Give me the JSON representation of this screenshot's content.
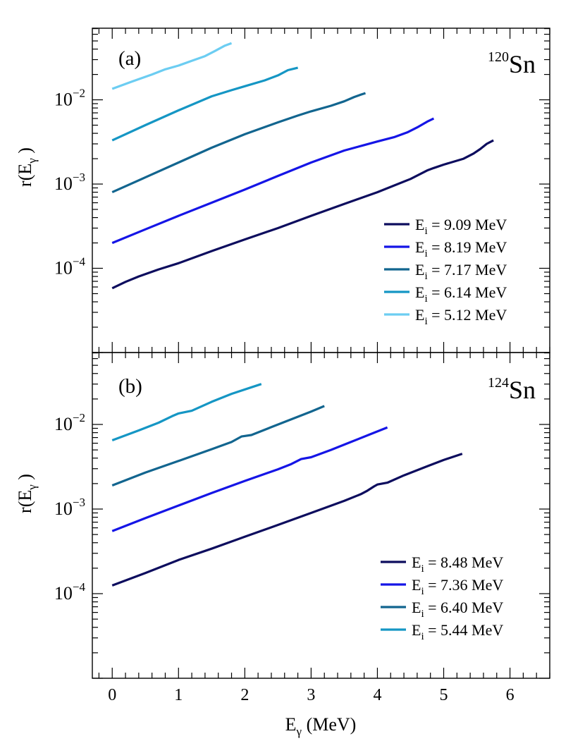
{
  "figure": {
    "xlabel_main": "E",
    "xlabel_sub": "γ",
    "xlabel_unit": " (MeV)",
    "x_ticks": [
      "0",
      "1",
      "2",
      "3",
      "4",
      "5",
      "6"
    ]
  },
  "chart_data": [
    {
      "type": "line",
      "panel_label": "(a)",
      "isotope_mass": "120",
      "isotope_symbol": "Sn",
      "ylabel_main": "r(E",
      "ylabel_sub": "γ",
      "ylabel_close": " )",
      "xlim": [
        -0.3,
        6.6
      ],
      "ylim_log10": [
        -5.0,
        -1.15
      ],
      "yscale": "log",
      "y_tick_exponents": [
        -4,
        -3,
        -2
      ],
      "legend_position": "bottom-right",
      "series": [
        {
          "legend_main": "E",
          "legend_sub": "i",
          "legend_rest": " = 9.09 MeV",
          "color": "#0d0d5e",
          "x": [
            0.0,
            0.2,
            0.4,
            0.7,
            1.0,
            1.5,
            2.0,
            2.5,
            3.0,
            3.5,
            4.0,
            4.5,
            4.75,
            4.85,
            5.0,
            5.3,
            5.45,
            5.55,
            5.65,
            5.75
          ],
          "y": [
            5.8e-05,
            6.9e-05,
            8e-05,
            9.7e-05,
            0.000115,
            0.00016,
            0.00022,
            0.0003,
            0.00042,
            0.00058,
            0.0008,
            0.00115,
            0.00145,
            0.00155,
            0.0017,
            0.002,
            0.0023,
            0.0026,
            0.003,
            0.0033
          ]
        },
        {
          "legend_main": "E",
          "legend_sub": "i",
          "legend_rest": " = 8.19 MeV",
          "color": "#1515e6",
          "x": [
            0.0,
            0.5,
            1.0,
            1.5,
            2.0,
            2.5,
            3.0,
            3.5,
            3.8,
            4.0,
            4.25,
            4.45,
            4.6,
            4.75,
            4.85
          ],
          "y": [
            0.0002,
            0.00029,
            0.00042,
            0.0006,
            0.00086,
            0.00125,
            0.0018,
            0.0025,
            0.0029,
            0.0032,
            0.0036,
            0.0041,
            0.0047,
            0.0055,
            0.006
          ]
        },
        {
          "legend_main": "E",
          "legend_sub": "i",
          "legend_rest": " = 7.17 MeV",
          "color": "#12658f",
          "x": [
            0.0,
            0.5,
            1.0,
            1.5,
            2.0,
            2.5,
            2.8,
            3.0,
            3.3,
            3.5,
            3.65,
            3.75,
            3.82
          ],
          "y": [
            0.0008,
            0.0012,
            0.0018,
            0.0027,
            0.0039,
            0.0054,
            0.0065,
            0.0073,
            0.0085,
            0.0096,
            0.0108,
            0.0115,
            0.012
          ]
        },
        {
          "legend_main": "E",
          "legend_sub": "i",
          "legend_rest": " = 6.14 MeV",
          "color": "#1596c4",
          "x": [
            0.0,
            0.5,
            1.0,
            1.5,
            1.8,
            2.0,
            2.3,
            2.5,
            2.65,
            2.8
          ],
          "y": [
            0.0033,
            0.005,
            0.0075,
            0.011,
            0.013,
            0.0145,
            0.017,
            0.0195,
            0.0225,
            0.024
          ]
        },
        {
          "legend_main": "E",
          "legend_sub": "i",
          "legend_rest": " = 5.12 MeV",
          "color": "#6ccdf2",
          "x": [
            0.0,
            0.3,
            0.6,
            0.8,
            1.0,
            1.2,
            1.4,
            1.55,
            1.7,
            1.8
          ],
          "y": [
            0.0135,
            0.0165,
            0.02,
            0.023,
            0.0255,
            0.029,
            0.033,
            0.038,
            0.044,
            0.047
          ]
        }
      ]
    },
    {
      "type": "line",
      "panel_label": "(b)",
      "isotope_mass": "124",
      "isotope_symbol": "Sn",
      "ylabel_main": "r(E",
      "ylabel_sub": "γ",
      "ylabel_close": " )",
      "xlim": [
        -0.3,
        6.6
      ],
      "ylim_log10": [
        -5.0,
        -1.15
      ],
      "yscale": "log",
      "y_tick_exponents": [
        -4,
        -3,
        -2
      ],
      "legend_position": "bottom-right",
      "series": [
        {
          "legend_main": "E",
          "legend_sub": "i",
          "legend_rest": " = 8.48 MeV",
          "color": "#0d0d5e",
          "x": [
            0.0,
            0.5,
            1.0,
            1.5,
            2.0,
            2.5,
            3.0,
            3.5,
            3.75,
            3.85,
            3.95,
            4.0,
            4.15,
            4.4,
            4.75,
            5.0,
            5.28
          ],
          "y": [
            0.000125,
            0.000175,
            0.00025,
            0.00034,
            0.00047,
            0.00065,
            0.0009,
            0.00125,
            0.0015,
            0.00165,
            0.00185,
            0.00195,
            0.00205,
            0.0025,
            0.0032,
            0.0038,
            0.0045
          ]
        },
        {
          "legend_main": "E",
          "legend_sub": "i",
          "legend_rest": " = 7.36 MeV",
          "color": "#1515e6",
          "x": [
            0.0,
            0.5,
            1.0,
            1.5,
            2.0,
            2.5,
            2.7,
            2.85,
            3.0,
            3.3,
            3.6,
            3.9,
            4.15
          ],
          "y": [
            0.00055,
            0.00078,
            0.0011,
            0.00155,
            0.00215,
            0.00295,
            0.0034,
            0.0039,
            0.0041,
            0.005,
            0.0062,
            0.0077,
            0.0092
          ]
        },
        {
          "legend_main": "E",
          "legend_sub": "i",
          "legend_rest": " = 6.40 MeV",
          "color": "#12658f",
          "x": [
            0.0,
            0.5,
            1.0,
            1.5,
            1.8,
            1.95,
            2.1,
            2.4,
            2.7,
            3.0,
            3.2
          ],
          "y": [
            0.0019,
            0.0027,
            0.0037,
            0.0051,
            0.0062,
            0.0072,
            0.0075,
            0.0093,
            0.0115,
            0.0142,
            0.0165
          ]
        },
        {
          "legend_main": "E",
          "legend_sub": "i",
          "legend_rest": " = 5.44 MeV",
          "color": "#1596c4",
          "x": [
            0.0,
            0.4,
            0.7,
            0.9,
            1.0,
            1.2,
            1.5,
            1.8,
            2.1,
            2.25
          ],
          "y": [
            0.0065,
            0.0085,
            0.0105,
            0.0125,
            0.0135,
            0.0145,
            0.0185,
            0.023,
            0.0275,
            0.03
          ]
        }
      ]
    }
  ]
}
